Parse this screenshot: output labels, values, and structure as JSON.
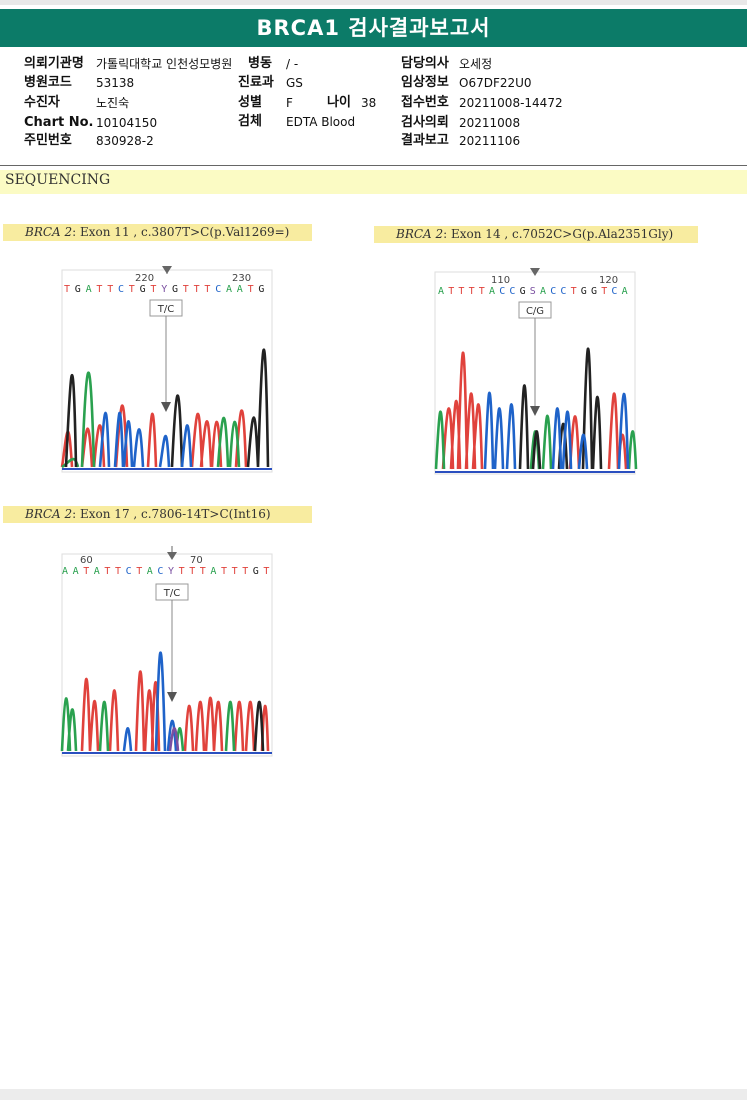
{
  "report": {
    "title": "BRCA1 검사결과보고서"
  },
  "header": {
    "institution_label": "의뢰기관명",
    "institution": "가톨릭대학교 인천성모병원",
    "ward_label": "병동",
    "ward": "/ -",
    "doctor_label": "담당의사",
    "doctor": "오세정",
    "hospital_code_label": "병원코드",
    "hospital_code": "53138",
    "department_label": "진료과",
    "department": "GS",
    "clinical_info_label": "임상정보",
    "clinical_info": "O67DF22U0",
    "patient_label": "수진자",
    "patient": "노진숙",
    "sex_label": "성별",
    "sex": "F",
    "age_label": "나이",
    "age": "38",
    "receipt_label": "접수번호",
    "receipt": "20211008-14472",
    "chart_label": "Chart No.",
    "chart": "10104150",
    "specimen_label": "검체",
    "specimen": "EDTA Blood",
    "request_label": "검사의뢰",
    "request": "20211008",
    "id_label": "주민번호",
    "id": "830928-2",
    "report_label": "결과보고",
    "report_date": "20211106"
  },
  "section": {
    "title": "SEQUENCING"
  },
  "variants": [
    {
      "gene": "BRCA 2",
      "desc": ": Exon 11 , c.3807T>C(p.Val1269=)",
      "call": "T/C",
      "tick_left": "220",
      "tick_right": "230",
      "sequence": [
        "T",
        "G",
        "A",
        "T",
        "T",
        "C",
        "T",
        "G",
        "T",
        "Y",
        "G",
        "T",
        "T",
        "T",
        "C",
        "A",
        "A",
        "T",
        "G"
      ],
      "base_colors": {
        "A": "#2aa14f",
        "C": "#1f63c9",
        "G": "#222222",
        "T": "#e0423c",
        "Y": "#7a4fa0",
        "S": "#7a4fa0"
      }
    },
    {
      "gene": "BRCA 2",
      "desc": ": Exon 14 , c.7052C>G(p.Ala2351Gly)",
      "call": "C/G",
      "tick_left": "110",
      "tick_right": "120",
      "sequence": [
        "A",
        "T",
        "T",
        "T",
        "T",
        "A",
        "C",
        "C",
        "G",
        "S",
        "A",
        "C",
        "C",
        "T",
        "G",
        "G",
        "T",
        "C",
        "A"
      ]
    },
    {
      "gene": "BRCA 2",
      "desc": ": Exon 17 , c.7806-14T>C(Int16)",
      "call": "T/C",
      "tick_left": "60",
      "tick_right": "70",
      "sequence": [
        "A",
        "A",
        "T",
        "A",
        "T",
        "T",
        "C",
        "T",
        "A",
        "C",
        "Y",
        "T",
        "T",
        "T",
        "A",
        "T",
        "T",
        "T",
        "G",
        "T"
      ]
    }
  ]
}
